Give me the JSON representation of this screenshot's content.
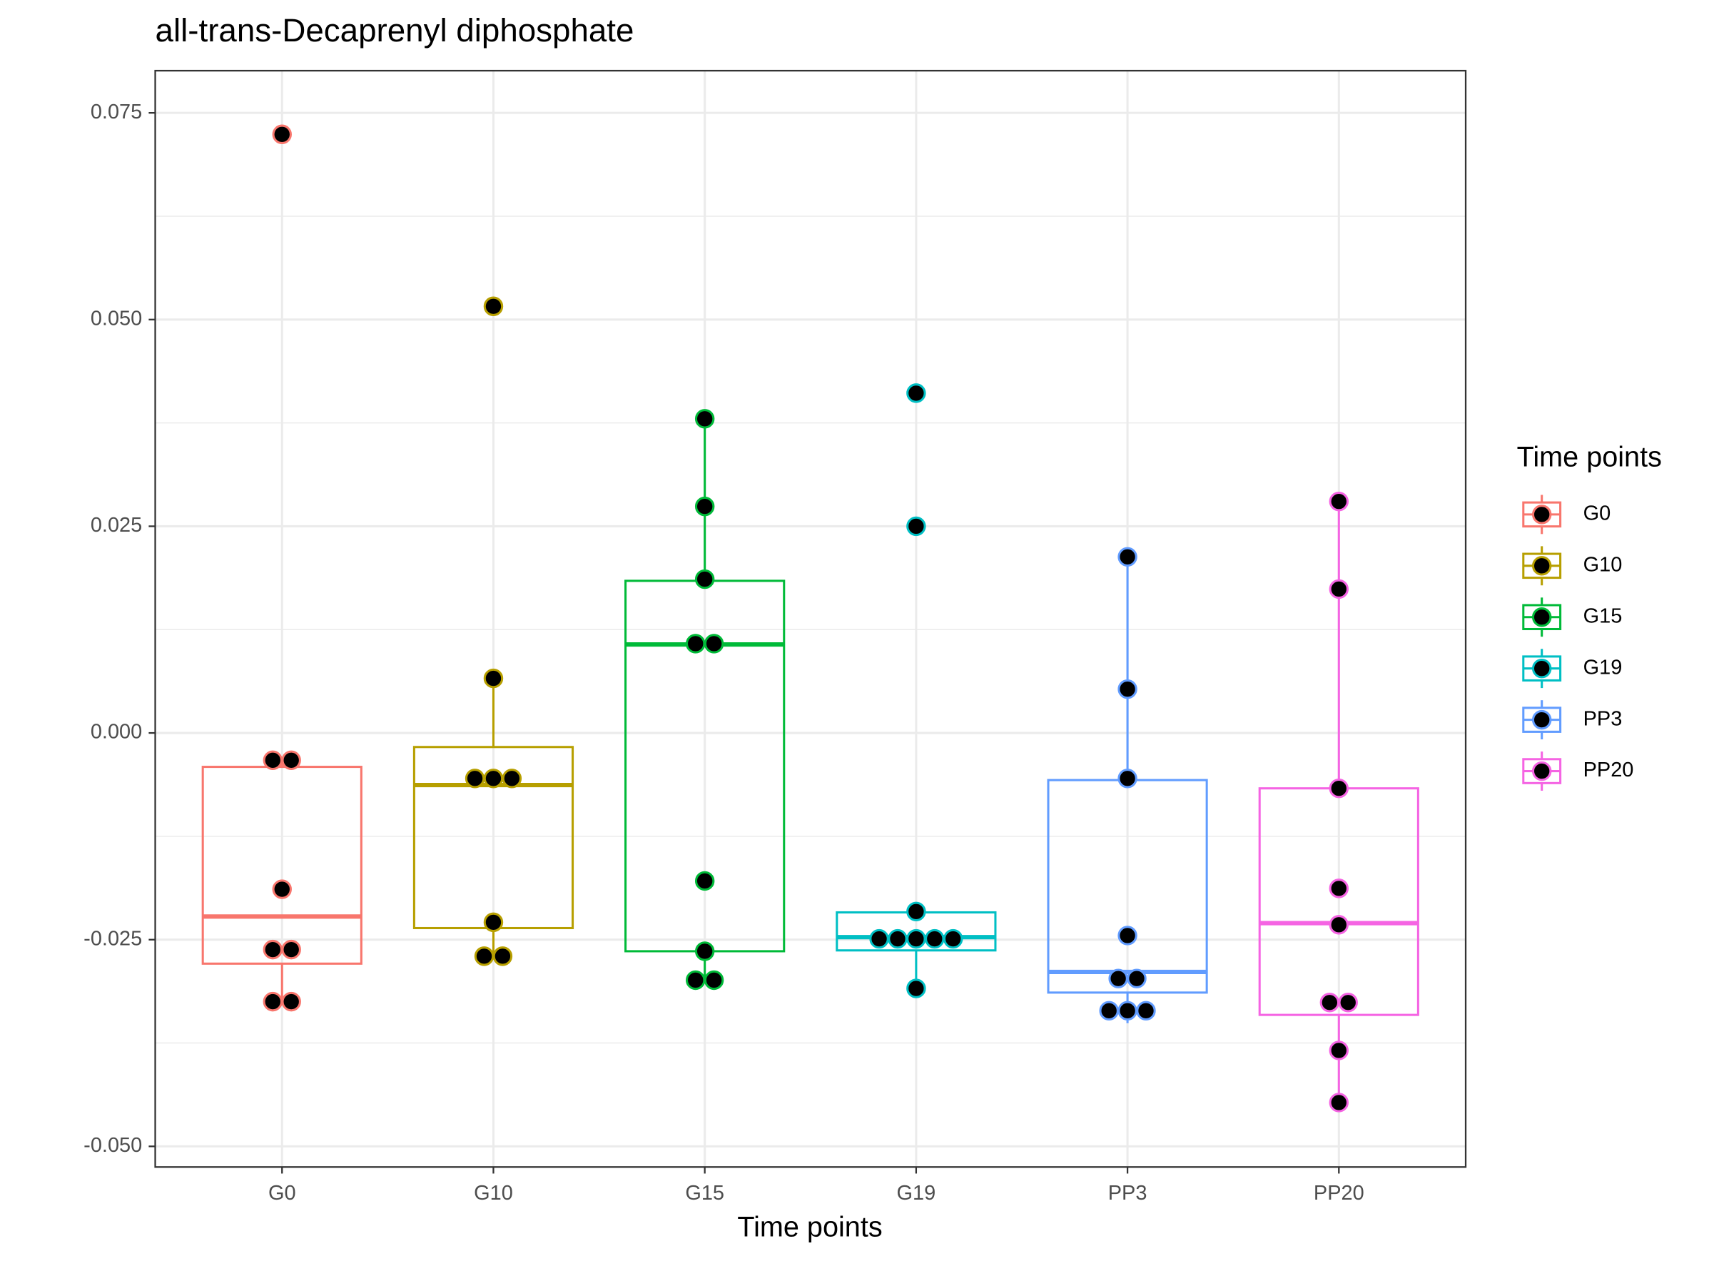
{
  "chart_data": {
    "type": "box",
    "title": "all-trans-Decaprenyl diphosphate",
    "xlabel": "Time points",
    "legend_title": "Time points",
    "legend": "right",
    "categories": [
      "G0",
      "G10",
      "G15",
      "G19",
      "PP3",
      "PP20"
    ],
    "ylim": [
      -0.0525,
      0.0801
    ],
    "yticks": [
      {
        "value": -0.05,
        "label": "-0.050"
      },
      -0.025,
      {
        "value": 0,
        "label": "0.000"
      },
      0.025,
      {
        "value": 0.05,
        "label": "0.050"
      },
      0.075
    ],
    "minor_yticks": [
      -0.0375,
      -0.0125,
      0.0125,
      0.0375,
      0.0625
    ],
    "grid": true,
    "point_color": "#000000",
    "series": [
      {
        "name": "G0",
        "color": "#F8766D",
        "box": {
          "low": -0.0325,
          "q1": -0.0279,
          "median": -0.0222,
          "q3": -0.0041,
          "high": -0.0033
        },
        "points": [
          0.0724,
          -0.0033,
          -0.0033,
          -0.0189,
          -0.0262,
          -0.0262,
          -0.0325,
          -0.0325
        ]
      },
      {
        "name": "G10",
        "color": "#B79F00",
        "box": {
          "low": -0.027,
          "q1": -0.0236,
          "median": -0.0063,
          "q3": -0.0017,
          "high": 0.0066
        },
        "points": [
          0.0516,
          0.0066,
          -0.0055,
          -0.0055,
          -0.0055,
          -0.0229,
          -0.027,
          -0.027
        ]
      },
      {
        "name": "G15",
        "color": "#00BA38",
        "box": {
          "low": -0.0299,
          "q1": -0.0264,
          "median": 0.0107,
          "q3": 0.0184,
          "high": 0.038
        },
        "points": [
          0.038,
          0.0274,
          0.0186,
          0.0108,
          0.0108,
          -0.0179,
          -0.0264,
          -0.0299,
          -0.0299
        ]
      },
      {
        "name": "G19",
        "color": "#00BFC4",
        "box": {
          "low": -0.0309,
          "q1": -0.0263,
          "median": -0.0247,
          "q3": -0.0217,
          "high": -0.0216
        },
        "points": [
          0.0411,
          0.025,
          -0.0216,
          -0.0249,
          -0.0249,
          -0.0249,
          -0.0249,
          -0.0249,
          -0.0309
        ]
      },
      {
        "name": "PP3",
        "color": "#619CFF",
        "box": {
          "low": -0.0351,
          "q1": -0.0314,
          "median": -0.0289,
          "q3": -0.0057,
          "high": 0.0213
        },
        "points": [
          0.0213,
          0.0053,
          -0.0055,
          -0.0245,
          -0.0297,
          -0.0297,
          -0.0336,
          -0.0336,
          -0.0336
        ]
      },
      {
        "name": "PP20",
        "color": "#F564E3",
        "box": {
          "low": -0.0447,
          "q1": -0.0341,
          "median": -0.023,
          "q3": -0.0067,
          "high": 0.028
        },
        "points": [
          0.028,
          0.0174,
          -0.0067,
          -0.0188,
          -0.0232,
          -0.0326,
          -0.0326,
          -0.0384,
          -0.0447
        ]
      }
    ]
  }
}
